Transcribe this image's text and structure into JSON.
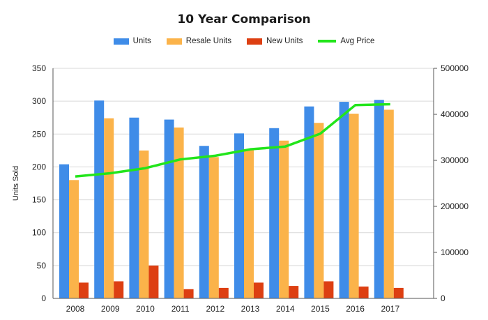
{
  "chart_data": {
    "type": "bar",
    "title": "10 Year Comparison",
    "ylabel": "Units Sold",
    "y2label": "",
    "categories": [
      "2008",
      "2009",
      "2010",
      "2011",
      "2012",
      "2013",
      "2014",
      "2015",
      "2016",
      "2017"
    ],
    "ylim": [
      0,
      350
    ],
    "yticks": [
      0,
      50,
      100,
      150,
      200,
      250,
      300,
      350
    ],
    "y2lim": [
      0,
      500000
    ],
    "y2ticks": [
      0,
      100000,
      200000,
      300000,
      400000,
      500000
    ],
    "grid": true,
    "legend_position": "top",
    "series": [
      {
        "name": "Units",
        "type": "bar",
        "axis": "left",
        "color": "#3f8ce8",
        "values": [
          204,
          301,
          275,
          272,
          232,
          251,
          259,
          292,
          299,
          302
        ]
      },
      {
        "name": "Resale Units",
        "type": "bar",
        "axis": "left",
        "color": "#fbb34a",
        "values": [
          180,
          274,
          225,
          260,
          215,
          226,
          240,
          267,
          281,
          287
        ]
      },
      {
        "name": "New Units",
        "type": "bar",
        "axis": "left",
        "color": "#dd3f12",
        "values": [
          24,
          26,
          50,
          14,
          16,
          24,
          19,
          26,
          18,
          16
        ]
      },
      {
        "name": "Avg Price",
        "type": "line",
        "axis": "right",
        "color": "#22e51b",
        "values": [
          265000,
          272000,
          283000,
          302000,
          310000,
          324000,
          330000,
          358000,
          420000,
          422000
        ]
      }
    ]
  }
}
